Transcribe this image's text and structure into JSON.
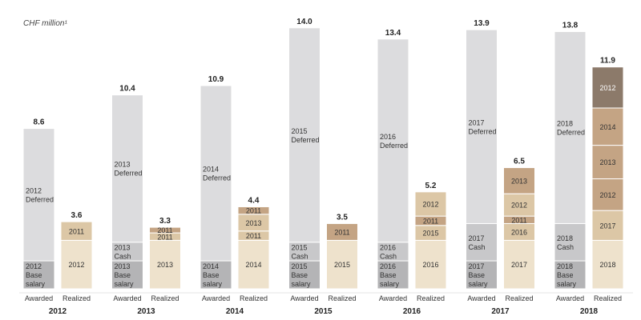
{
  "chart_data": {
    "type": "bar",
    "title": "",
    "unit_label": "CHF million¹",
    "ylim": [
      0,
      14
    ],
    "bar_labels": [
      "Awarded",
      "Realized"
    ],
    "groups": [
      {
        "year": "2012",
        "awarded": {
          "total": "8.6",
          "segments": [
            {
              "label": "2012\nBase\nsalary",
              "value": 1.5,
              "kind": "base"
            },
            {
              "label": "2012\nDeferred",
              "value": 7.1,
              "kind": "deferred"
            }
          ]
        },
        "realized": {
          "total": "3.6",
          "segments": [
            {
              "label": "2012",
              "value": 2.6,
              "kind": "r1"
            },
            {
              "label": "2011",
              "value": 1.0,
              "kind": "r2"
            }
          ]
        }
      },
      {
        "year": "2013",
        "awarded": {
          "total": "10.4",
          "segments": [
            {
              "label": "2013\nBase\nsalary",
              "value": 1.5,
              "kind": "base"
            },
            {
              "label": "2013\nCash",
              "value": 1.0,
              "kind": "cash"
            },
            {
              "label": "2013\nDeferred",
              "value": 7.9,
              "kind": "deferred"
            }
          ]
        },
        "realized": {
          "total": "3.3",
          "segments": [
            {
              "label": "2013",
              "value": 2.6,
              "kind": "r1"
            },
            {
              "label": "2011",
              "value": 0.4,
              "kind": "r2"
            },
            {
              "label": "2011",
              "value": 0.3,
              "kind": "r3"
            }
          ]
        }
      },
      {
        "year": "2014",
        "awarded": {
          "total": "10.9",
          "segments": [
            {
              "label": "2014\nBase\nsalary",
              "value": 1.5,
              "kind": "base"
            },
            {
              "label": "2014\nDeferred",
              "value": 9.4,
              "kind": "deferred"
            }
          ]
        },
        "realized": {
          "total": "4.4",
          "segments": [
            {
              "label": "2014",
              "value": 2.6,
              "kind": "r1"
            },
            {
              "label": "2011",
              "value": 0.5,
              "kind": "r2"
            },
            {
              "label": "2013",
              "value": 0.9,
              "kind": "r2"
            },
            {
              "label": "2011",
              "value": 0.4,
              "kind": "r3"
            }
          ]
        }
      },
      {
        "year": "2015",
        "awarded": {
          "total": "14.0",
          "segments": [
            {
              "label": "2015\nBase\nsalary",
              "value": 1.5,
              "kind": "base"
            },
            {
              "label": "2015\nCash",
              "value": 1.0,
              "kind": "cash"
            },
            {
              "label": "2015\nDeferred",
              "value": 11.5,
              "kind": "deferred"
            }
          ]
        },
        "realized": {
          "total": "3.5",
          "segments": [
            {
              "label": "2015",
              "value": 2.6,
              "kind": "r1"
            },
            {
              "label": "2011",
              "value": 0.9,
              "kind": "r3"
            }
          ]
        }
      },
      {
        "year": "2016",
        "awarded": {
          "total": "13.4",
          "segments": [
            {
              "label": "2016\nBase\nsalary",
              "value": 1.5,
              "kind": "base"
            },
            {
              "label": "2016\nCash",
              "value": 1.0,
              "kind": "cash"
            },
            {
              "label": "2016\nDeferred",
              "value": 10.9,
              "kind": "deferred"
            }
          ]
        },
        "realized": {
          "total": "5.2",
          "segments": [
            {
              "label": "2016",
              "value": 2.6,
              "kind": "r1"
            },
            {
              "label": "2015",
              "value": 0.8,
              "kind": "r2"
            },
            {
              "label": "2011",
              "value": 0.5,
              "kind": "r3"
            },
            {
              "label": "2012",
              "value": 1.3,
              "kind": "r2"
            }
          ]
        }
      },
      {
        "year": "2017",
        "awarded": {
          "total": "13.9",
          "segments": [
            {
              "label": "2017\nBase\nsalary",
              "value": 1.5,
              "kind": "base"
            },
            {
              "label": "2017\nCash",
              "value": 2.0,
              "kind": "cash"
            },
            {
              "label": "2017\nDeferred",
              "value": 10.4,
              "kind": "deferred"
            }
          ]
        },
        "realized": {
          "total": "6.5",
          "segments": [
            {
              "label": "2017",
              "value": 2.6,
              "kind": "r1"
            },
            {
              "label": "2016",
              "value": 0.9,
              "kind": "r2"
            },
            {
              "label": "2011",
              "value": 0.4,
              "kind": "r3"
            },
            {
              "label": "2012",
              "value": 1.2,
              "kind": "r2"
            },
            {
              "label": "2013",
              "value": 1.4,
              "kind": "r3"
            }
          ]
        }
      },
      {
        "year": "2018",
        "awarded": {
          "total": "13.8",
          "segments": [
            {
              "label": "2018\nBase\nsalary",
              "value": 1.5,
              "kind": "base"
            },
            {
              "label": "2018\nCash",
              "value": 2.0,
              "kind": "cash"
            },
            {
              "label": "2018\nDeferred",
              "value": 10.3,
              "kind": "deferred"
            }
          ]
        },
        "realized": {
          "total": "11.9",
          "segments": [
            {
              "label": "2018",
              "value": 2.6,
              "kind": "r1"
            },
            {
              "label": "2017",
              "value": 1.6,
              "kind": "r2"
            },
            {
              "label": "2012",
              "value": 1.7,
              "kind": "r3"
            },
            {
              "label": "2013",
              "value": 1.8,
              "kind": "r3"
            },
            {
              "label": "2014",
              "value": 2.0,
              "kind": "r3"
            },
            {
              "label": "2012",
              "value": 2.2,
              "kind": "r4"
            }
          ]
        }
      }
    ],
    "colors": {
      "base": "#b4b4b6",
      "cash": "#c8c8ca",
      "deferred": "#dcdcde",
      "r1": "#eee2cc",
      "r2": "#dcc7a6",
      "r3": "#c4a484",
      "r4": "#8c7a6a",
      "label_dark": "#333333",
      "label_light": "#ffffff"
    }
  }
}
